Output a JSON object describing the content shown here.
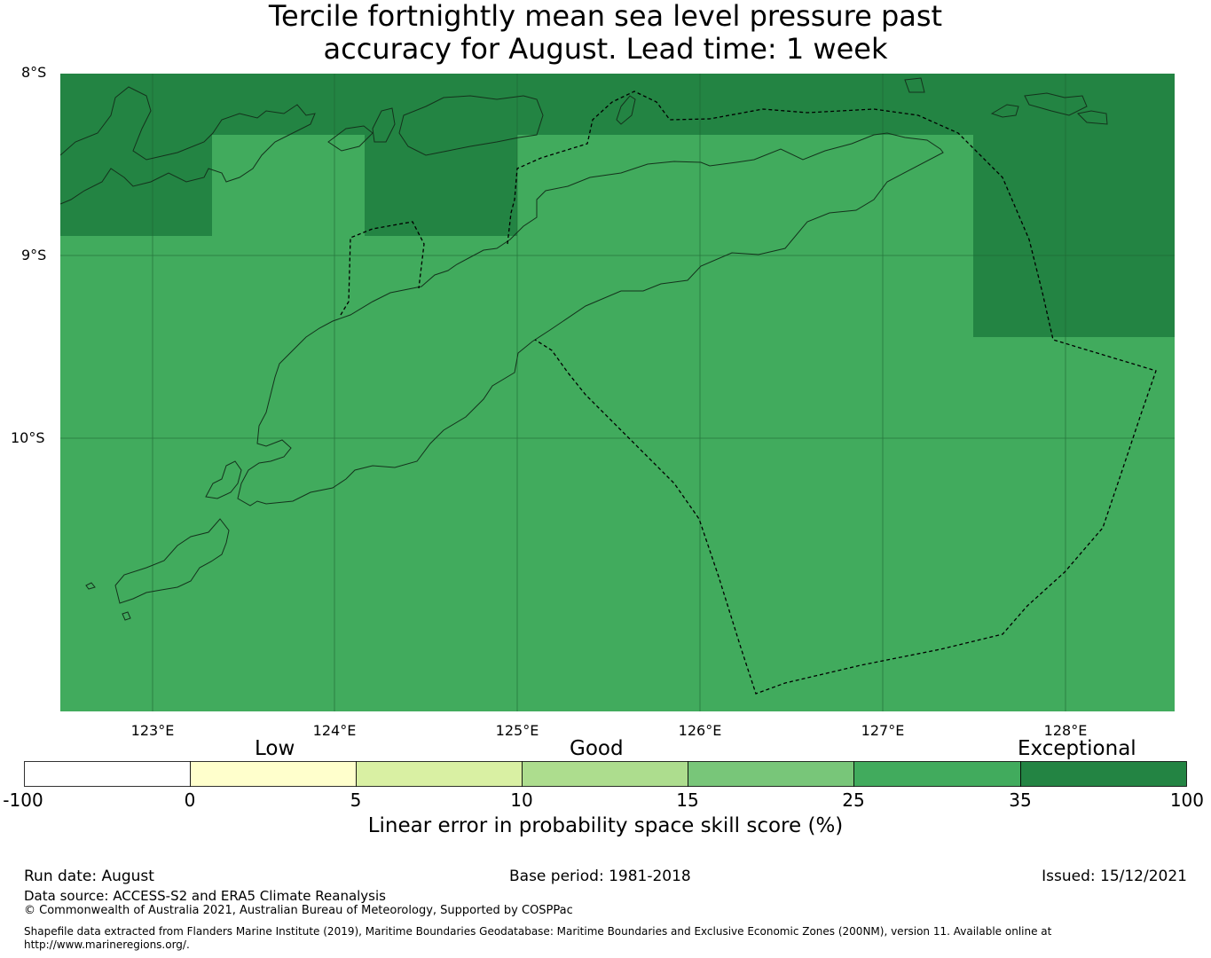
{
  "title": {
    "line1": "Tercile fortnightly mean sea level pressure past",
    "line2": "accuracy for August. Lead time: 1 week"
  },
  "map": {
    "lat_labels": [
      "8°S",
      "9°S",
      "10°S"
    ],
    "lon_labels": [
      "123°E",
      "124°E",
      "125°E",
      "126°E",
      "127°E",
      "128°E"
    ],
    "colors": {
      "ocean_fill": "#41ab5d",
      "exceptional_fill": "#238443",
      "coast": "#1a3a22"
    }
  },
  "colorbar": {
    "categories": [
      "Low",
      "Good",
      "Exceptional"
    ],
    "ticks": [
      "-100",
      "0",
      "5",
      "10",
      "15",
      "25",
      "35",
      "100"
    ],
    "bins": [
      {
        "from": -100,
        "to": 0,
        "color": "#ffffff"
      },
      {
        "from": 0,
        "to": 5,
        "color": "#ffffcc"
      },
      {
        "from": 5,
        "to": 10,
        "color": "#d9f0a3"
      },
      {
        "from": 10,
        "to": 15,
        "color": "#addd8e"
      },
      {
        "from": 15,
        "to": 25,
        "color": "#78c679"
      },
      {
        "from": 25,
        "to": 35,
        "color": "#41ab5d"
      },
      {
        "from": 35,
        "to": 100,
        "color": "#238443"
      }
    ],
    "label": "Linear error in probability space skill score (%)"
  },
  "footer": {
    "run_date": "Run date: August",
    "base_period": "Base period: 1981-2018",
    "issued": "Issued: 15/12/2021",
    "data_source": "Data source: ACCESS-S2 and ERA5 Climate Reanalysis",
    "copyright": "© Commonwealth of Australia 2021, Australian Bureau of Meteorology, Supported by COSPPac",
    "shapefile": "Shapefile data extracted from Flanders Marine Institute (2019), Maritime Boundaries Geodatabase: Maritime Boundaries and Exclusive Economic Zones (200NM), version 11. Available online at http://www.marineregions.org/."
  }
}
